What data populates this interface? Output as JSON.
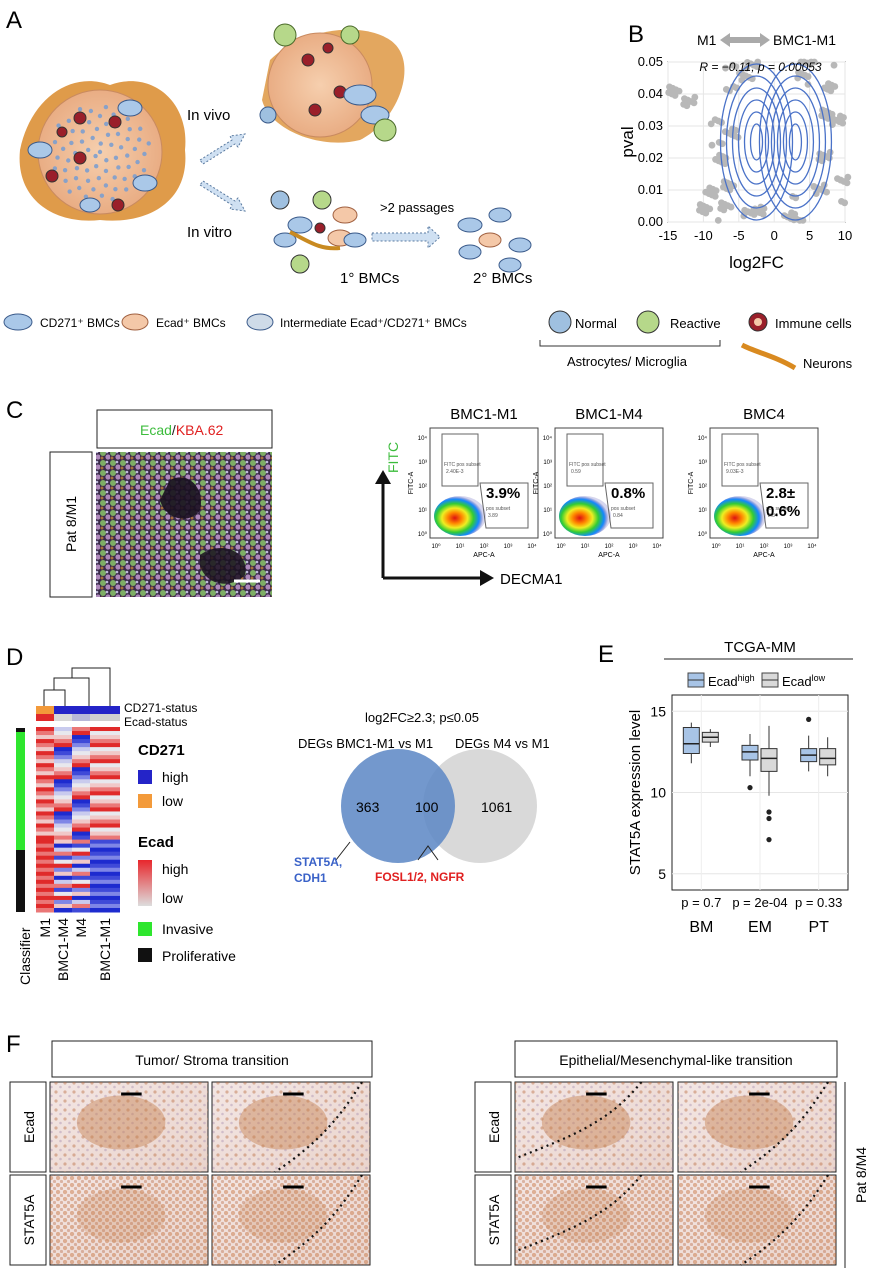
{
  "panels": {
    "a": {
      "letter": "A",
      "in_vivo": "In vivo",
      "in_vitro": "In vitro",
      "passages": ">2 passages",
      "primary": "1° BMCs",
      "secondary": "2° BMCs",
      "legend": {
        "cd271": "CD271⁺ BMCs",
        "ecad": "Ecad⁺ BMCs",
        "intermediate": "Intermediate Ecad⁺/CD271⁺ BMCs",
        "normal": "Normal",
        "reactive": "Reactive",
        "astro": "Astrocytes/ Microglia",
        "immune": "Immune cells",
        "neurons": "Neurons"
      }
    },
    "b": {
      "letter": "B"
    },
    "c": {
      "letter": "C",
      "stain_ecad": "Ecad",
      "stain_sep": "/",
      "stain_kba": "KBA.62",
      "sample": "Pat 8/M1",
      "fitc": "FITC",
      "decma": "DECMA1",
      "flow": [
        {
          "title": "BMC1-M1",
          "pct": "3.9%",
          "pct2": "",
          "gate_top": "FITC pos subset",
          "gate_top_val": "2.40E-3",
          "gate_bot": "pos subset",
          "gate_bot_val": "3.89"
        },
        {
          "title": "BMC1-M4",
          "pct": "0.8%",
          "pct2": "",
          "gate_top": "FITC pos subset",
          "gate_top_val": "0.59",
          "gate_bot": "pos subset",
          "gate_bot_val": "0.84"
        },
        {
          "title": "BMC4",
          "pct": "2.8±",
          "pct2": "0.6%",
          "gate_top": "FITC pos subset",
          "gate_top_val": "9.03E-3",
          "gate_bot": "pos subset",
          "gate_bot_val": "2.84"
        }
      ],
      "axis_x": "APC-A",
      "axis_y": "FITC-A",
      "ticks": [
        "10⁰",
        "10¹",
        "10²",
        "10³",
        "10⁴"
      ]
    },
    "d": {
      "letter": "D",
      "cd271_status": "CD271-status",
      "ecad_status": "Ecad-status",
      "legend_cd271": "CD271",
      "high": "high",
      "low": "low",
      "legend_ecad": "Ecad",
      "invasive": "Invasive",
      "proliferative": "Proliferative",
      "classifier": "Classifier",
      "columns": [
        "M1",
        "BMC1-M4",
        "M4",
        "BMC1-M1"
      ],
      "venn_header": "log2FC≥2.3; p≤0.05",
      "venn_left_title": "DEGs BMC1-M1 vs M1",
      "venn_right_title": "DEGs M4 vs M1",
      "venn_left": "363",
      "venn_mid": "100",
      "venn_right": "1061",
      "gene_left_1": "STAT5A,",
      "gene_left_2": "CDH1",
      "gene_mid": "FOSL1/2, NGFR"
    },
    "f": {
      "letter": "F",
      "header_left": "Tumor/ Stroma transition",
      "header_right": "Epithelial/Mesenchymal-like transition",
      "row1": "Ecad",
      "row2": "STAT5A",
      "patient": "Pat 8/M4"
    }
  },
  "chart_data": [
    {
      "type": "scatter",
      "panel": "B",
      "title": "",
      "header_left": "M1",
      "header_right": "BMC1-M1",
      "annotation": "R = −0.11, p = 0.00053",
      "xlabel": "log2FC",
      "ylabel": "pval",
      "xlim": [
        -15,
        10
      ],
      "ylim": [
        0,
        0.05
      ],
      "xticks": [
        "-15",
        "-10",
        "-5",
        "0",
        "5",
        "10"
      ],
      "yticks": [
        "0.00",
        "0.01",
        "0.02",
        "0.03",
        "0.04",
        "0.05"
      ],
      "grid": true
    },
    {
      "type": "box",
      "panel": "E",
      "letter": "E",
      "title": "TCGA-MM",
      "ylabel": "STAT5A expression level",
      "ylim": [
        4,
        16
      ],
      "yticks": [
        "5",
        "10",
        "15"
      ],
      "categories": [
        "BM",
        "EM",
        "PT"
      ],
      "legend": [
        {
          "name": "Ecad",
          "sup": "high",
          "color": "#a8c4e6"
        },
        {
          "name": "Ecad",
          "sup": "low",
          "color": "#d9d9d9"
        }
      ],
      "series": [
        {
          "name": "Ecad high",
          "color": "#a8c4e6",
          "boxes": [
            {
              "q1": 12.4,
              "median": 13.0,
              "q3": 14.0,
              "wlo": 11.8,
              "whi": 14.3,
              "outliers": []
            },
            {
              "q1": 12.0,
              "median": 12.5,
              "q3": 12.9,
              "wlo": 11.0,
              "whi": 13.6,
              "outliers": [
                10.3
              ]
            },
            {
              "q1": 11.9,
              "median": 12.3,
              "q3": 12.7,
              "wlo": 11.3,
              "whi": 13.5,
              "outliers": [
                14.5
              ]
            }
          ]
        },
        {
          "name": "Ecad low",
          "color": "#d9d9d9",
          "boxes": [
            {
              "q1": 13.1,
              "median": 13.4,
              "q3": 13.7,
              "wlo": 12.8,
              "whi": 13.9,
              "outliers": []
            },
            {
              "q1": 11.3,
              "median": 12.1,
              "q3": 12.7,
              "wlo": 9.8,
              "whi": 14.1,
              "outliers": [
                8.8,
                8.4,
                7.1
              ]
            },
            {
              "q1": 11.7,
              "median": 12.1,
              "q3": 12.7,
              "wlo": 11.0,
              "whi": 13.4,
              "outliers": []
            }
          ]
        }
      ],
      "pvalues": [
        "p = 0.7",
        "p = 2e-04",
        "p = 0.33"
      ]
    }
  ]
}
